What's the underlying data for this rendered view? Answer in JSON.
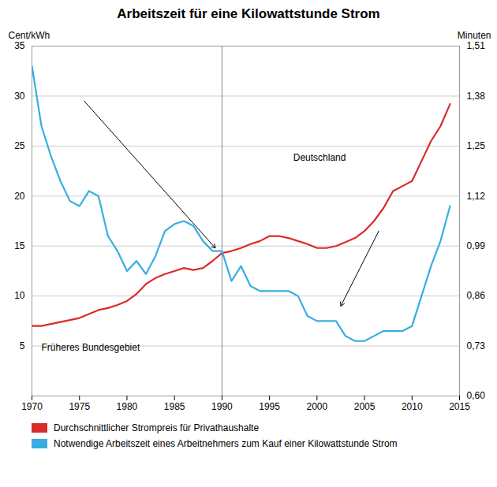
{
  "chart_data": {
    "type": "line",
    "title": "Arbeitszeit für eine Kilowattstunde Strom",
    "ylabel": "Cent/kWh",
    "y2label": "Minuten",
    "x": [
      1970,
      1971,
      1972,
      1973,
      1974,
      1975,
      1976,
      1977,
      1978,
      1979,
      1980,
      1981,
      1982,
      1983,
      1984,
      1985,
      1986,
      1987,
      1988,
      1989,
      1990,
      1991,
      1992,
      1993,
      1994,
      1995,
      1996,
      1997,
      1998,
      1999,
      2000,
      2001,
      2002,
      2003,
      2004,
      2005,
      2006,
      2007,
      2008,
      2009,
      2010,
      2011,
      2012,
      2013,
      2014
    ],
    "series": [
      {
        "name": "Durchschnittlicher Strompreis für Privathaushalte",
        "color": "#d92b2b",
        "values": [
          7.0,
          7.0,
          7.2,
          7.4,
          7.6,
          7.8,
          8.2,
          8.6,
          8.8,
          9.1,
          9.5,
          10.2,
          11.2,
          11.8,
          12.2,
          12.5,
          12.8,
          12.6,
          12.8,
          13.5,
          14.3,
          14.5,
          14.8,
          15.2,
          15.5,
          16.0,
          16.0,
          15.8,
          15.5,
          15.2,
          14.8,
          14.8,
          15.0,
          15.4,
          15.8,
          16.5,
          17.5,
          18.8,
          20.5,
          21.0,
          21.5,
          23.5,
          25.5,
          27.0,
          29.2
        ]
      },
      {
        "name": "Notwendige Arbeitszeit eines Arbeitnehmers zum Kauf einer Kilowattstunde Strom",
        "color": "#38aee0",
        "values": [
          33.0,
          27.0,
          24.0,
          21.5,
          19.5,
          19.0,
          20.5,
          20.0,
          16.0,
          14.5,
          12.5,
          13.5,
          12.2,
          14.0,
          16.5,
          17.2,
          17.5,
          17.0,
          15.5,
          14.5,
          14.5,
          11.5,
          13.0,
          11.0,
          10.5,
          10.5,
          10.5,
          10.5,
          10.0,
          8.0,
          7.5,
          7.5,
          7.5,
          6.0,
          5.5,
          5.5,
          6.0,
          6.5,
          6.5,
          6.5,
          7.0,
          10.0,
          13.0,
          15.5,
          19.0
        ]
      }
    ],
    "xlim": [
      1970,
      2015
    ],
    "xticks": [
      1970,
      1975,
      1980,
      1985,
      1990,
      1995,
      2000,
      2005,
      2010,
      2015
    ],
    "ylim": [
      0,
      35
    ],
    "yticks": [
      5,
      10,
      15,
      20,
      25,
      30,
      35
    ],
    "y2lim": [
      0.6,
      1.51
    ],
    "y2ticks": [
      {
        "value": 0.6,
        "label": "0,60"
      },
      {
        "value": 0.73,
        "label": "0,73"
      },
      {
        "value": 0.86,
        "label": "0,86"
      },
      {
        "value": 0.99,
        "label": "0,99"
      },
      {
        "value": 1.12,
        "label": "1,12"
      },
      {
        "value": 1.25,
        "label": "1,25"
      },
      {
        "value": 1.38,
        "label": "1,38"
      },
      {
        "value": 1.51,
        "label": "1,51"
      }
    ],
    "grid": true,
    "legend": "lower left",
    "vline": 1990,
    "annotations": [
      {
        "text": "Früheres Bundesgebiet",
        "x": 1971,
        "y": 4.5
      },
      {
        "text": "Deutschland",
        "x": 1997.5,
        "y": 23.5
      }
    ],
    "arrows": [
      {
        "x1": 1975.5,
        "y1": 29.5,
        "x2": 1989.3,
        "y2": 14.8
      },
      {
        "x1": 2006.5,
        "y1": 16.5,
        "x2": 2002.5,
        "y2": 9.0
      }
    ]
  }
}
